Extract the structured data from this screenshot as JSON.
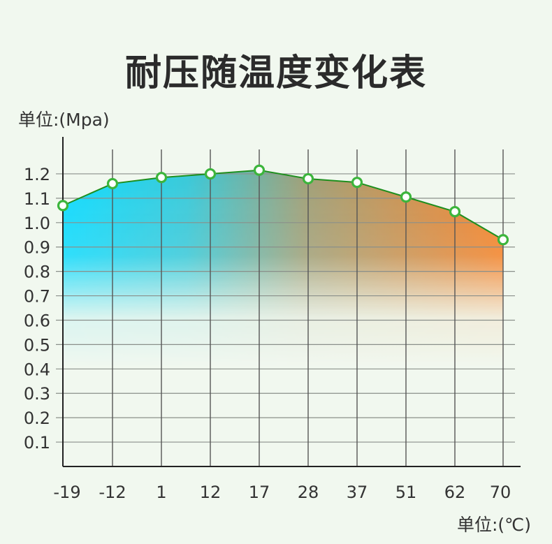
{
  "chart_data": {
    "type": "area",
    "title": "耐压随温度变化表",
    "ylabel": "单位:(Mpa)",
    "xlabel": "单位:(℃)",
    "categories": [
      "-19",
      "-12",
      "1",
      "12",
      "17",
      "28",
      "37",
      "51",
      "62",
      "70"
    ],
    "values": [
      1.07,
      1.16,
      1.185,
      1.2,
      1.215,
      1.18,
      1.165,
      1.105,
      1.045,
      0.93
    ],
    "y_ticks": [
      0.1,
      0.2,
      0.3,
      0.4,
      0.5,
      0.6,
      0.7,
      0.8,
      0.9,
      1.0,
      1.1,
      1.2
    ],
    "ylim": [
      0,
      1.3
    ],
    "grid": true,
    "colors": {
      "line": "#1e8f1e",
      "marker": "#3cb53c",
      "gradient_start": "#00d8ff",
      "gradient_end": "#f57a1c"
    }
  }
}
